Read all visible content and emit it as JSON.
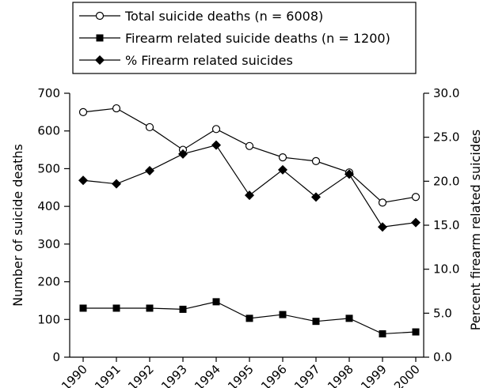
{
  "chart_data": {
    "type": "line",
    "categories": [
      "1990",
      "1991",
      "1992",
      "1993",
      "1994",
      "1995",
      "1996",
      "1997",
      "1998",
      "1999",
      "2000"
    ],
    "series": [
      {
        "name": "Total suicide deaths (n = 6008)",
        "axis": "left",
        "marker": "open-circle",
        "values": [
          650,
          660,
          610,
          550,
          605,
          560,
          530,
          520,
          490,
          410,
          425
        ]
      },
      {
        "name": "Firearm related suicide deaths (n = 1200)",
        "axis": "left",
        "marker": "filled-square",
        "values": [
          130,
          130,
          130,
          127,
          147,
          103,
          113,
          95,
          103,
          62,
          67
        ]
      },
      {
        "name": "% Firearm related suicides",
        "axis": "right",
        "marker": "filled-diamond",
        "values": [
          20.1,
          19.7,
          21.2,
          23.1,
          24.1,
          18.4,
          21.3,
          18.2,
          20.8,
          14.8,
          15.3
        ]
      }
    ],
    "ylabel": "Number of suicide deaths",
    "ylim": [
      0,
      700
    ],
    "yticks": [
      "0",
      "100",
      "200",
      "300",
      "400",
      "500",
      "600",
      "700"
    ],
    "ytick_values": [
      0,
      100,
      200,
      300,
      400,
      500,
      600,
      700
    ],
    "y2label": "Percent firearm related suicides",
    "y2lim": [
      0,
      30
    ],
    "y2ticks": [
      "0.0",
      "5.0",
      "10.0",
      "15.0",
      "20.0",
      "25.0",
      "30.0"
    ],
    "y2tick_values": [
      0,
      5,
      10,
      15,
      20,
      25,
      30
    ],
    "grid": false,
    "legend_position": "top"
  }
}
